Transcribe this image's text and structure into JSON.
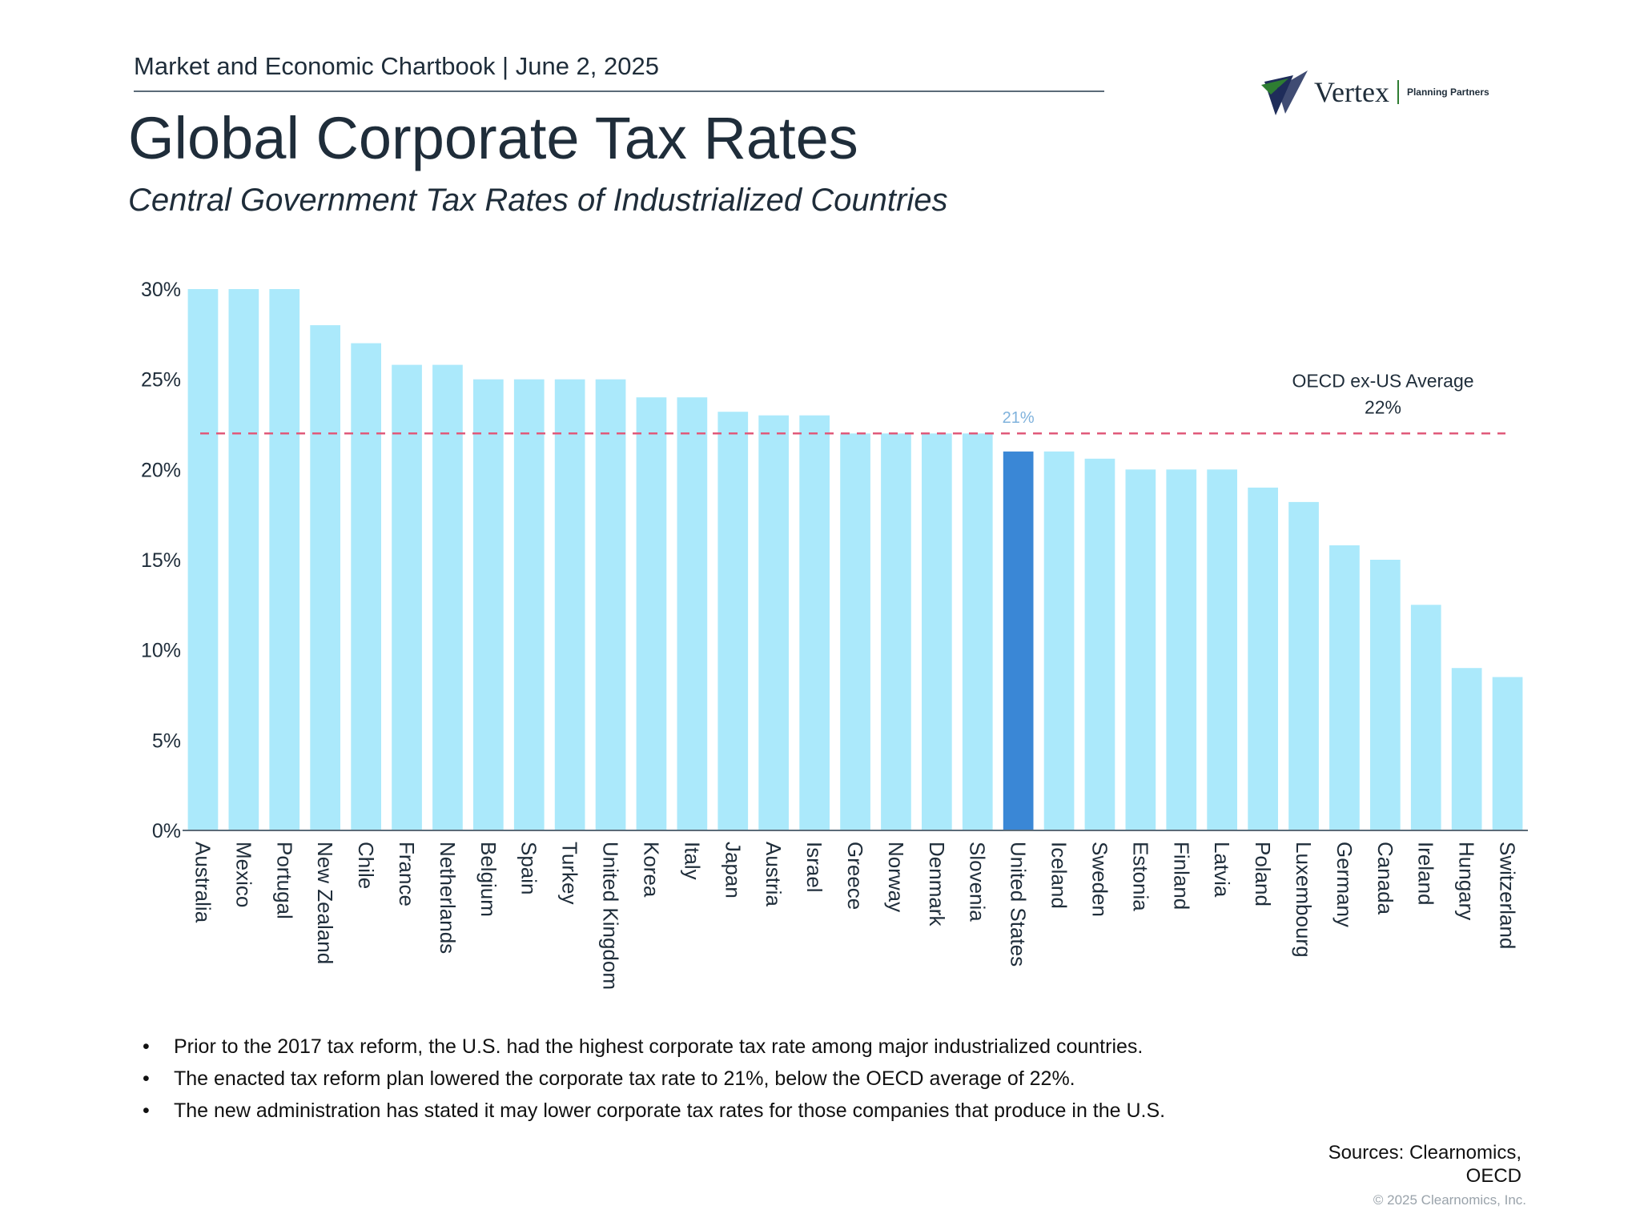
{
  "header": {
    "chartbook": "Market and Economic Chartbook | June 2, 2025",
    "title": "Global Corporate Tax Rates",
    "subtitle": "Central Government Tax Rates of Industrialized Countries"
  },
  "logo": {
    "name": "Vertex",
    "tagline": "Planning Partners",
    "brand_color": "#2e7d32",
    "mark_color": "#1f2d5a"
  },
  "chart_data": {
    "type": "bar",
    "title": "Global Corporate Tax Rates",
    "ylabel": "",
    "xlabel": "",
    "ylim": [
      0,
      30
    ],
    "yticks": [
      0,
      5,
      10,
      15,
      20,
      25,
      30
    ],
    "ytick_labels": [
      "0%",
      "5%",
      "10%",
      "15%",
      "20%",
      "25%",
      "30%"
    ],
    "categories": [
      "Australia",
      "Mexico",
      "Portugal",
      "New Zealand",
      "Chile",
      "France",
      "Netherlands",
      "Belgium",
      "Spain",
      "Turkey",
      "United Kingdom",
      "Korea",
      "Italy",
      "Japan",
      "Austria",
      "Israel",
      "Greece",
      "Norway",
      "Denmark",
      "Slovenia",
      "United States",
      "Iceland",
      "Sweden",
      "Estonia",
      "Finland",
      "Latvia",
      "Poland",
      "Luxembourg",
      "Germany",
      "Canada",
      "Ireland",
      "Hungary",
      "Switzerland"
    ],
    "values": [
      30,
      30,
      30,
      28,
      27,
      25.8,
      25.8,
      25,
      25,
      25,
      25,
      24,
      24,
      23.2,
      23,
      23,
      22,
      22,
      22,
      22,
      21,
      21,
      20.6,
      20,
      20,
      20,
      19,
      18.2,
      15.8,
      15,
      12.5,
      9,
      8.5
    ],
    "highlight_category": "United States",
    "highlight_label": "21%",
    "reference_line": {
      "value": 22,
      "label": "OECD ex-US Average",
      "value_label": "22%"
    },
    "colors": {
      "bar": "#abe9fb",
      "highlight": "#3a87d6",
      "reference": "#e05a7a",
      "highlight_label": "#7fb2dc",
      "axis": "#5b6b78"
    }
  },
  "notes": [
    "Prior to the 2017 tax reform, the U.S. had the highest corporate tax rate among major industrialized countries.",
    "The enacted tax reform plan lowered the corporate tax rate to 21%, below the OECD average of 22%.",
    "The new administration has stated it may lower corporate tax rates for those companies that produce in the U.S."
  ],
  "sources": {
    "label": "Sources: Clearnomics,",
    "line2": "OECD"
  },
  "copyright": "© 2025 Clearnomics, Inc."
}
